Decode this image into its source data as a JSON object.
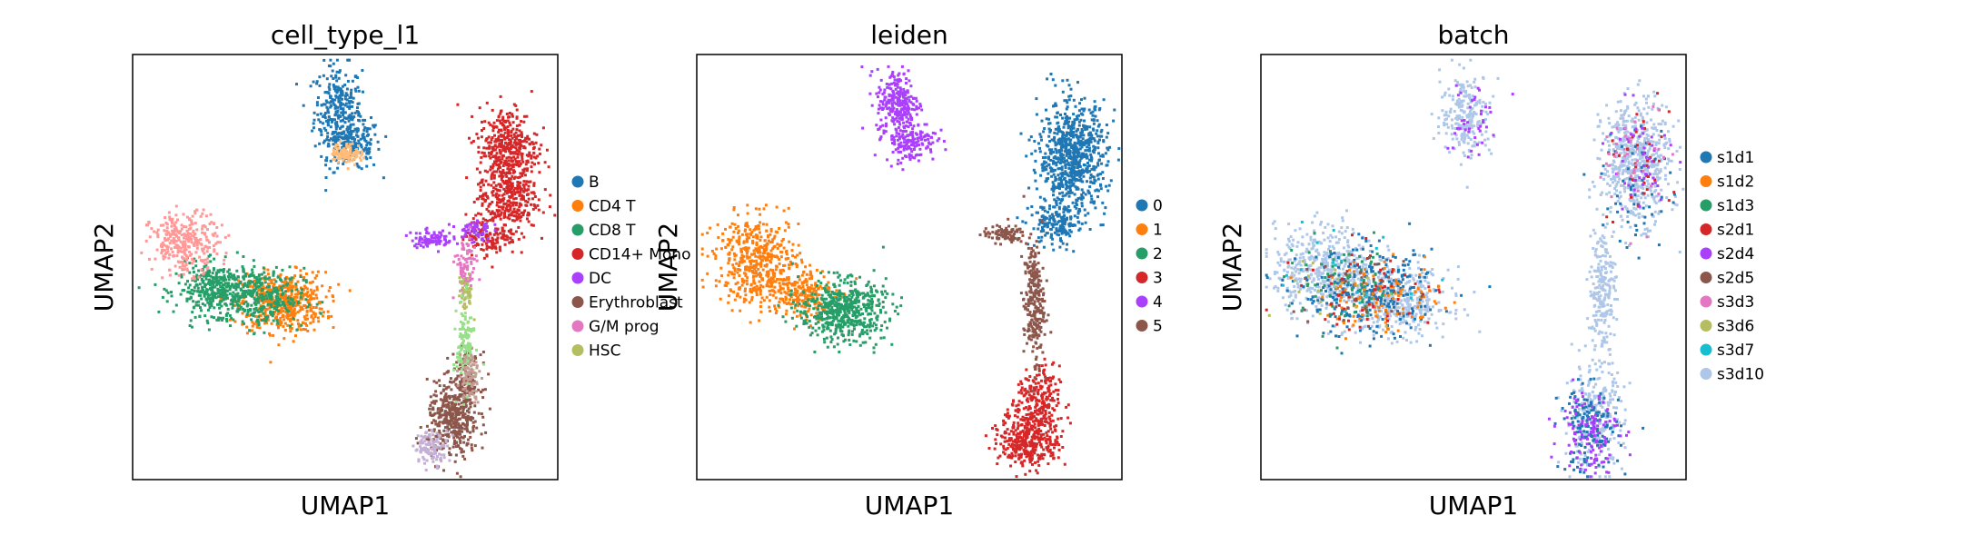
{
  "chart_data": [
    {
      "type": "scatter",
      "title": "cell_type_l1",
      "xlabel": "UMAP1",
      "ylabel": "UMAP2",
      "grid": false,
      "legend_position": "right",
      "ticks": "none",
      "legend": [
        {
          "label": "B",
          "color": "#1f77b4"
        },
        {
          "label": "CD4 T",
          "color": "#ff7f0e"
        },
        {
          "label": "CD8 T",
          "color": "#279e68"
        },
        {
          "label": "CD14+ Mono",
          "color": "#d62728"
        },
        {
          "label": "DC",
          "color": "#aa40fc"
        },
        {
          "label": "Erythroblast",
          "color": "#8c564b"
        },
        {
          "label": "G/M prog",
          "color": "#e377c2"
        },
        {
          "label": "HSC",
          "color": "#b5bd61"
        }
      ],
      "series": [
        {
          "name": "B",
          "color": "#1f77b4",
          "clusters": [
            {
              "x": 0.48,
              "y": 0.87,
              "sx": 0.028,
              "sy": 0.055,
              "n": 300
            },
            {
              "x": 0.52,
              "y": 0.79,
              "sx": 0.03,
              "sy": 0.03,
              "n": 160
            }
          ]
        },
        {
          "name": "CD4 T",
          "color": "#ff7f0e",
          "clusters": [
            {
              "x": 0.35,
              "y": 0.42,
              "sx": 0.05,
              "sy": 0.035,
              "n": 520
            }
          ]
        },
        {
          "name": "CD8 T",
          "color": "#279e68",
          "clusters": [
            {
              "x": 0.2,
              "y": 0.45,
              "sx": 0.05,
              "sy": 0.03,
              "n": 420
            },
            {
              "x": 0.3,
              "y": 0.43,
              "sx": 0.05,
              "sy": 0.035,
              "n": 260
            }
          ]
        },
        {
          "name": "CD14+ Mono",
          "color": "#d62728",
          "clusters": [
            {
              "x": 0.88,
              "y": 0.78,
              "sx": 0.035,
              "sy": 0.05,
              "n": 420
            },
            {
              "x": 0.88,
              "y": 0.66,
              "sx": 0.035,
              "sy": 0.035,
              "n": 260
            },
            {
              "x": 0.84,
              "y": 0.58,
              "sx": 0.03,
              "sy": 0.025,
              "n": 140
            }
          ]
        },
        {
          "name": "DC",
          "color": "#aa40fc",
          "clusters": [
            {
              "x": 0.7,
              "y": 0.57,
              "sx": 0.025,
              "sy": 0.01,
              "n": 90
            },
            {
              "x": 0.8,
              "y": 0.59,
              "sx": 0.02,
              "sy": 0.015,
              "n": 60
            }
          ]
        },
        {
          "name": "Erythroblast",
          "color": "#8c564b",
          "clusters": [
            {
              "x": 0.75,
              "y": 0.14,
              "sx": 0.03,
              "sy": 0.045,
              "n": 380
            },
            {
              "x": 0.78,
              "y": 0.23,
              "sx": 0.018,
              "sy": 0.035,
              "n": 140
            }
          ]
        },
        {
          "name": "G/M prog",
          "color": "#e377c2",
          "clusters": [
            {
              "x": 0.78,
              "y": 0.5,
              "sx": 0.012,
              "sy": 0.035,
              "n": 90
            }
          ]
        },
        {
          "name": "HSC",
          "color": "#b5bd61",
          "clusters": [
            {
              "x": 0.78,
              "y": 0.44,
              "sx": 0.008,
              "sy": 0.02,
              "n": 50
            }
          ]
        },
        {
          "name": "",
          "color": "#98df8a",
          "clusters": [
            {
              "x": 0.78,
              "y": 0.32,
              "sx": 0.01,
              "sy": 0.05,
              "n": 130
            }
          ]
        },
        {
          "name": "",
          "color": "#ff9896",
          "clusters": [
            {
              "x": 0.12,
              "y": 0.56,
              "sx": 0.04,
              "sy": 0.035,
              "n": 300
            }
          ]
        },
        {
          "name": "",
          "color": "#c5b0d5",
          "clusters": [
            {
              "x": 0.7,
              "y": 0.08,
              "sx": 0.02,
              "sy": 0.02,
              "n": 110
            }
          ]
        },
        {
          "name": "",
          "color": "#ffbb78",
          "clusters": [
            {
              "x": 0.5,
              "y": 0.77,
              "sx": 0.018,
              "sy": 0.012,
              "n": 90
            }
          ]
        },
        {
          "name": "",
          "color": "#c49c94",
          "clusters": [
            {
              "x": 0.79,
              "y": 0.25,
              "sx": 0.012,
              "sy": 0.03,
              "n": 80
            }
          ]
        }
      ]
    },
    {
      "type": "scatter",
      "title": "leiden",
      "xlabel": "UMAP1",
      "ylabel": "UMAP2",
      "grid": false,
      "legend_position": "right",
      "ticks": "none",
      "legend": [
        {
          "label": "0",
          "color": "#1f77b4"
        },
        {
          "label": "1",
          "color": "#ff7f0e"
        },
        {
          "label": "2",
          "color": "#279e68"
        },
        {
          "label": "3",
          "color": "#d62728"
        },
        {
          "label": "4",
          "color": "#aa40fc"
        },
        {
          "label": "5",
          "color": "#8c564b"
        }
      ],
      "series": [
        {
          "name": "0",
          "color": "#1f77b4",
          "clusters": [
            {
              "x": 0.88,
              "y": 0.76,
              "sx": 0.04,
              "sy": 0.065,
              "n": 780
            },
            {
              "x": 0.84,
              "y": 0.6,
              "sx": 0.03,
              "sy": 0.025,
              "n": 160
            }
          ]
        },
        {
          "name": "1",
          "color": "#ff7f0e",
          "clusters": [
            {
              "x": 0.14,
              "y": 0.52,
              "sx": 0.05,
              "sy": 0.05,
              "n": 480
            },
            {
              "x": 0.24,
              "y": 0.44,
              "sx": 0.04,
              "sy": 0.03,
              "n": 220
            }
          ]
        },
        {
          "name": "2",
          "color": "#279e68",
          "clusters": [
            {
              "x": 0.34,
              "y": 0.4,
              "sx": 0.05,
              "sy": 0.035,
              "n": 560
            }
          ]
        },
        {
          "name": "3",
          "color": "#d62728",
          "clusters": [
            {
              "x": 0.78,
              "y": 0.1,
              "sx": 0.035,
              "sy": 0.035,
              "n": 400
            },
            {
              "x": 0.8,
              "y": 0.19,
              "sx": 0.025,
              "sy": 0.04,
              "n": 200
            }
          ]
        },
        {
          "name": "4",
          "color": "#aa40fc",
          "clusters": [
            {
              "x": 0.47,
              "y": 0.89,
              "sx": 0.025,
              "sy": 0.04,
              "n": 260
            },
            {
              "x": 0.5,
              "y": 0.8,
              "sx": 0.03,
              "sy": 0.025,
              "n": 150
            }
          ]
        },
        {
          "name": "5",
          "color": "#8c564b",
          "clusters": [
            {
              "x": 0.79,
              "y": 0.42,
              "sx": 0.012,
              "sy": 0.07,
              "n": 260
            },
            {
              "x": 0.72,
              "y": 0.58,
              "sx": 0.025,
              "sy": 0.01,
              "n": 90
            }
          ]
        }
      ]
    },
    {
      "type": "scatter",
      "title": "batch",
      "xlabel": "UMAP1",
      "ylabel": "UMAP2",
      "grid": false,
      "legend_position": "right",
      "ticks": "none",
      "legend": [
        {
          "label": "s1d1",
          "color": "#1f77b4"
        },
        {
          "label": "s1d2",
          "color": "#ff7f0e"
        },
        {
          "label": "s1d3",
          "color": "#279e68"
        },
        {
          "label": "s2d1",
          "color": "#d62728"
        },
        {
          "label": "s2d4",
          "color": "#aa40fc"
        },
        {
          "label": "s2d5",
          "color": "#8c564b"
        },
        {
          "label": "s3d3",
          "color": "#e377c2"
        },
        {
          "label": "s3d6",
          "color": "#b5bd61"
        },
        {
          "label": "s3d7",
          "color": "#17becf"
        },
        {
          "label": "s3d10",
          "color": "#aec7e8"
        }
      ],
      "series": [
        {
          "name": "s3d10",
          "color": "#aec7e8",
          "clusters": [
            {
              "x": 0.15,
              "y": 0.5,
              "sx": 0.06,
              "sy": 0.05,
              "n": 500
            },
            {
              "x": 0.32,
              "y": 0.42,
              "sx": 0.06,
              "sy": 0.04,
              "n": 400
            },
            {
              "x": 0.88,
              "y": 0.75,
              "sx": 0.04,
              "sy": 0.07,
              "n": 600
            },
            {
              "x": 0.8,
              "y": 0.45,
              "sx": 0.015,
              "sy": 0.08,
              "n": 220
            },
            {
              "x": 0.78,
              "y": 0.15,
              "sx": 0.035,
              "sy": 0.06,
              "n": 280
            },
            {
              "x": 0.48,
              "y": 0.86,
              "sx": 0.03,
              "sy": 0.05,
              "n": 220
            }
          ]
        },
        {
          "name": "s1d1",
          "color": "#1f77b4",
          "clusters": [
            {
              "x": 0.25,
              "y": 0.44,
              "sx": 0.08,
              "sy": 0.05,
              "n": 300
            },
            {
              "x": 0.77,
              "y": 0.12,
              "sx": 0.035,
              "sy": 0.05,
              "n": 160
            },
            {
              "x": 0.88,
              "y": 0.7,
              "sx": 0.04,
              "sy": 0.08,
              "n": 60
            }
          ]
        },
        {
          "name": "s1d2",
          "color": "#ff7f0e",
          "clusters": [
            {
              "x": 0.28,
              "y": 0.43,
              "sx": 0.07,
              "sy": 0.04,
              "n": 110
            }
          ]
        },
        {
          "name": "s1d3",
          "color": "#279e68",
          "clusters": [
            {
              "x": 0.2,
              "y": 0.46,
              "sx": 0.07,
              "sy": 0.05,
              "n": 70
            }
          ]
        },
        {
          "name": "s2d1",
          "color": "#d62728",
          "clusters": [
            {
              "x": 0.25,
              "y": 0.45,
              "sx": 0.08,
              "sy": 0.05,
              "n": 60
            },
            {
              "x": 0.88,
              "y": 0.75,
              "sx": 0.04,
              "sy": 0.07,
              "n": 40
            }
          ]
        },
        {
          "name": "s2d4",
          "color": "#aa40fc",
          "clusters": [
            {
              "x": 0.77,
              "y": 0.12,
              "sx": 0.035,
              "sy": 0.05,
              "n": 110
            },
            {
              "x": 0.49,
              "y": 0.85,
              "sx": 0.03,
              "sy": 0.05,
              "n": 40
            },
            {
              "x": 0.88,
              "y": 0.75,
              "sx": 0.04,
              "sy": 0.07,
              "n": 50
            }
          ]
        },
        {
          "name": "s2d5",
          "color": "#8c564b",
          "clusters": [
            {
              "x": 0.22,
              "y": 0.45,
              "sx": 0.08,
              "sy": 0.05,
              "n": 30
            }
          ]
        },
        {
          "name": "s3d3",
          "color": "#e377c2",
          "clusters": [
            {
              "x": 0.88,
              "y": 0.75,
              "sx": 0.04,
              "sy": 0.07,
              "n": 40
            }
          ]
        },
        {
          "name": "s3d6",
          "color": "#b5bd61",
          "clusters": [
            {
              "x": 0.2,
              "y": 0.46,
              "sx": 0.08,
              "sy": 0.05,
              "n": 20
            }
          ]
        },
        {
          "name": "s3d7",
          "color": "#17becf",
          "clusters": [
            {
              "x": 0.22,
              "y": 0.46,
              "sx": 0.08,
              "sy": 0.05,
              "n": 20
            }
          ]
        }
      ]
    }
  ]
}
